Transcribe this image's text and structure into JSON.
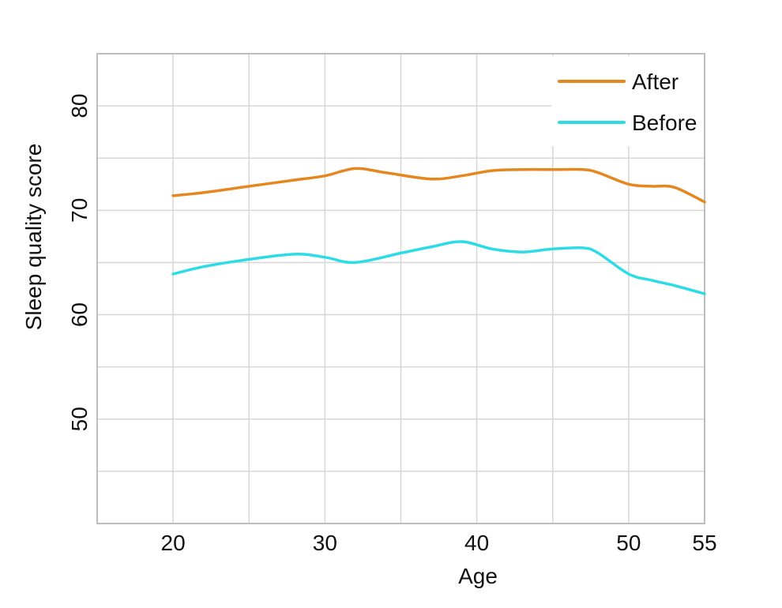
{
  "figure": {
    "background": "#ffffff",
    "text_color": "#111111",
    "grid_color": "#d6d6d6",
    "border_color": "#bdbdbd",
    "legend_background": "#ffffff"
  },
  "chart_data": {
    "type": "line",
    "title": "",
    "xlabel": "Age",
    "ylabel": "Sleep quality score",
    "xlim": [
      15,
      55
    ],
    "ylim": [
      40,
      85
    ],
    "grid": true,
    "x_gridlines": [
      20,
      25,
      30,
      35,
      40,
      45,
      50,
      55
    ],
    "y_gridlines": [
      45,
      50,
      55,
      60,
      65,
      70,
      75,
      80
    ],
    "x_ticks": [
      20,
      30,
      40,
      50,
      55
    ],
    "y_ticks": [
      50,
      60,
      70,
      80
    ],
    "legend_position": "top-right-inside",
    "series": [
      {
        "name": "After",
        "color": "#E5861E",
        "x": [
          20,
          22,
          25,
          28,
          30,
          32,
          34,
          37,
          39,
          41,
          43,
          45,
          47,
          48,
          50,
          51.5,
          53,
          55
        ],
        "y": [
          71.4,
          71.7,
          72.3,
          72.9,
          73.3,
          74.0,
          73.6,
          73.0,
          73.3,
          73.8,
          73.9,
          73.9,
          73.9,
          73.6,
          72.5,
          72.3,
          72.2,
          70.8
        ]
      },
      {
        "name": "Before",
        "color": "#2BDCE6",
        "x": [
          20,
          22,
          24.5,
          28,
          30,
          32,
          35,
          37,
          39,
          41,
          43,
          45,
          47,
          48,
          50,
          51.5,
          53,
          55
        ],
        "y": [
          63.9,
          64.6,
          65.2,
          65.8,
          65.5,
          65.0,
          65.9,
          66.5,
          67.0,
          66.3,
          66.0,
          66.3,
          66.4,
          65.9,
          63.9,
          63.3,
          62.8,
          62.0
        ]
      }
    ]
  }
}
